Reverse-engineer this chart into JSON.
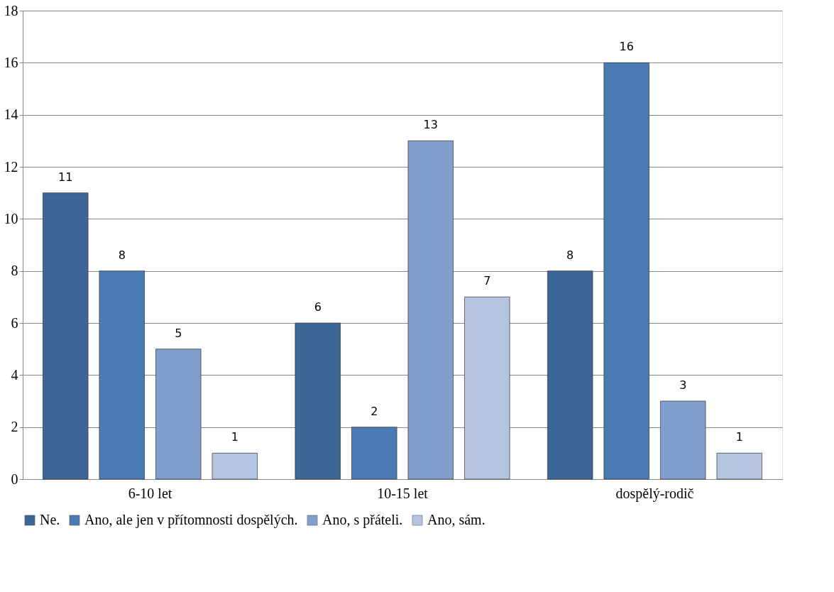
{
  "chart_data": {
    "type": "bar",
    "categories": [
      "6-10 let",
      "10-15 let",
      "dospělý-rodič"
    ],
    "series": [
      {
        "name": "Ne.",
        "color": "#3d6697",
        "values": [
          11,
          6,
          8
        ]
      },
      {
        "name": "Ano, ale jen v přítomnosti dospělých.",
        "color": "#4a7bb5",
        "values": [
          8,
          2,
          16
        ]
      },
      {
        "name": "Ano, s přáteli.",
        "color": "#809fcc",
        "values": [
          5,
          13,
          3
        ]
      },
      {
        "name": "Ano, sám.",
        "color": "#b5c4e0",
        "values": [
          1,
          7,
          1
        ]
      }
    ],
    "ylim": [
      0,
      18
    ],
    "yticks": [
      0,
      2,
      4,
      6,
      8,
      10,
      12,
      14,
      16,
      18
    ],
    "grid": "y",
    "legend": "bottom",
    "data_labels": true
  }
}
